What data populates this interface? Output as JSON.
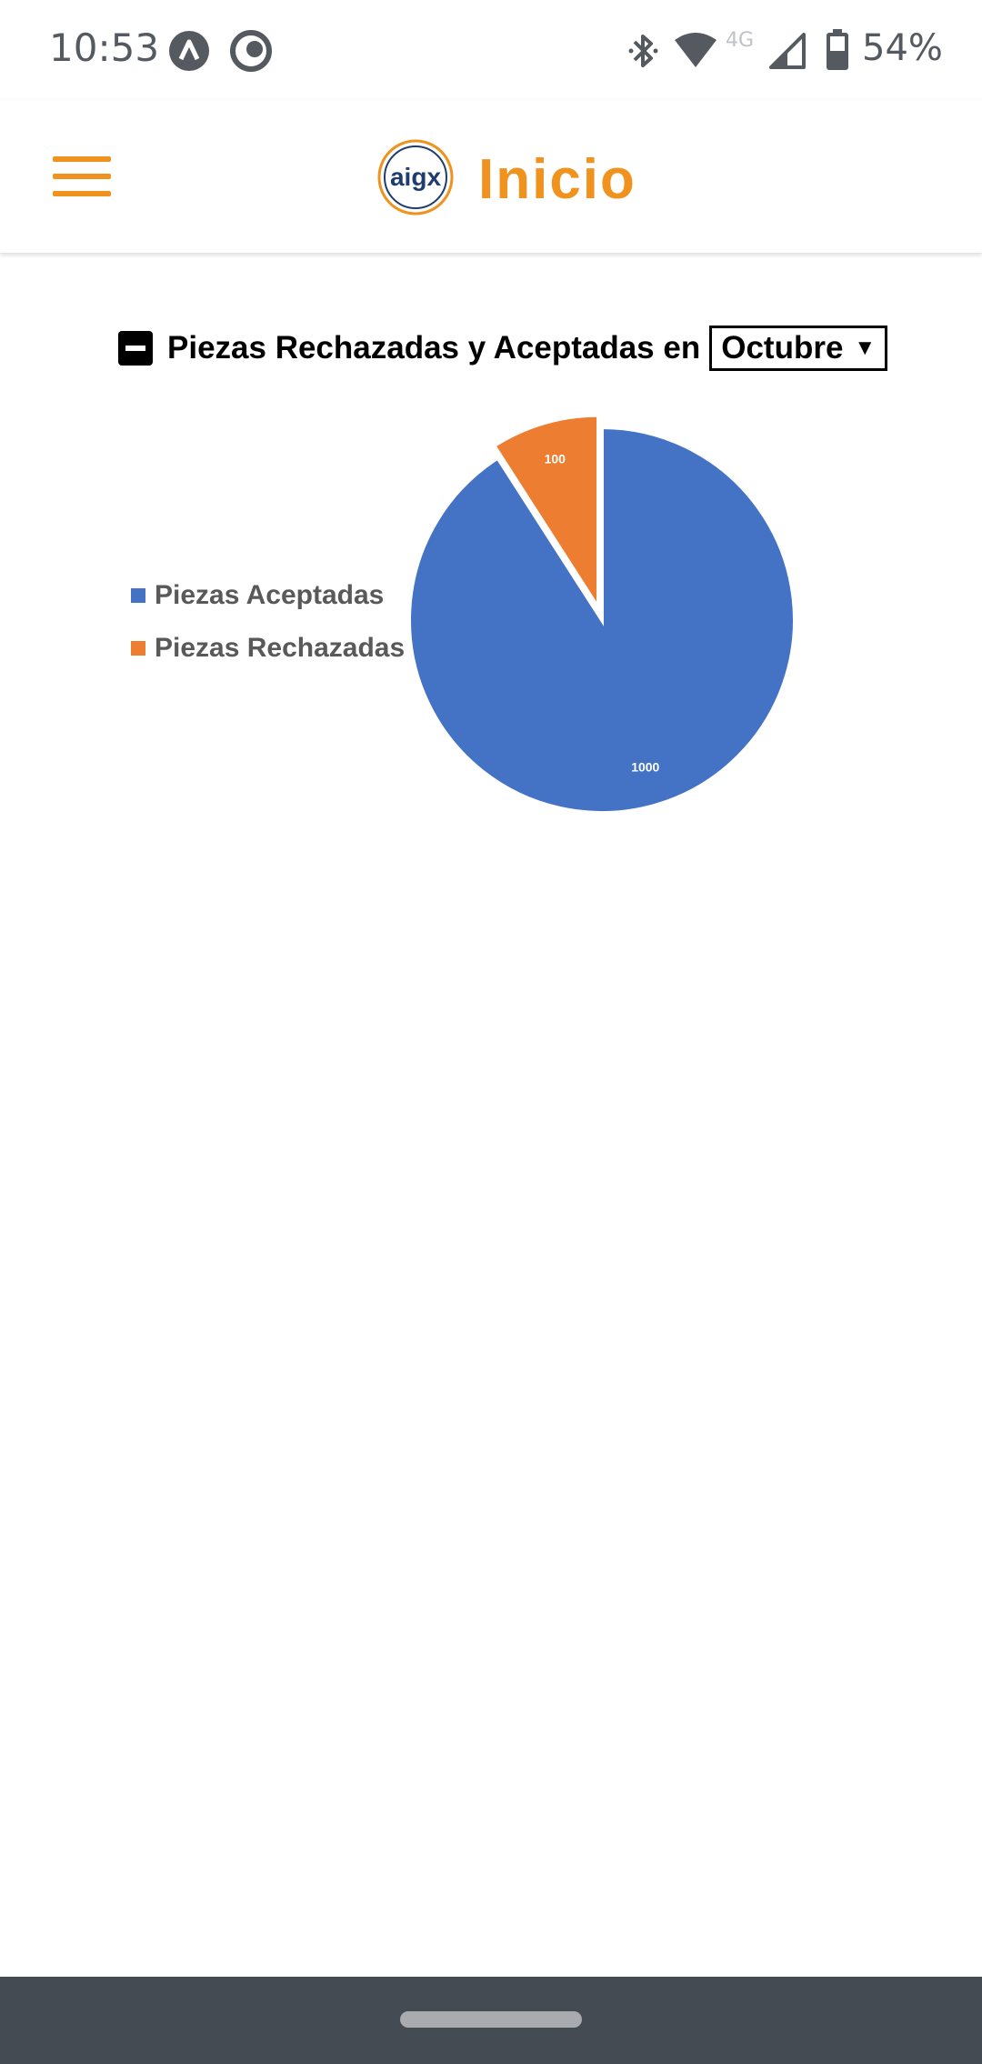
{
  "status_bar": {
    "time": "10:53",
    "network": "4G",
    "battery": "54%",
    "icons": [
      "launcher-a-icon",
      "sync-icon",
      "bluetooth-icon",
      "wifi-icon",
      "cellular-signal-icon",
      "battery-icon"
    ]
  },
  "app_bar": {
    "title": "Inicio",
    "logo_text": "aigx",
    "accent_color": "#f0921e"
  },
  "chart_header": {
    "title": "Piezas Rechazadas y Aceptadas en",
    "selected_month": "Octubre"
  },
  "chart_data": {
    "type": "pie",
    "categories": [
      "Piezas Aceptadas",
      "Piezas Rechazadas"
    ],
    "values": [
      1000,
      100
    ],
    "data_labels": [
      "1000",
      "100"
    ],
    "colors": [
      "#4472c4",
      "#ed7d31"
    ],
    "exploded": "Piezas Rechazadas",
    "legend_position": "left"
  },
  "nav_bar": {
    "color": "#454b52"
  }
}
